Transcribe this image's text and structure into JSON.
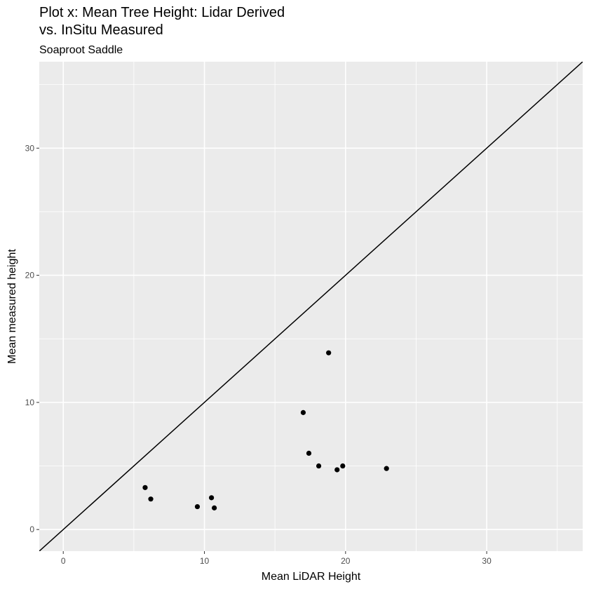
{
  "chart_data": {
    "type": "scatter",
    "title_lines": [
      "Plot x: Mean Tree Height: Lidar Derived",
      "vs. InSitu Measured"
    ],
    "subtitle": "Soaproot Saddle",
    "xlabel": "Mean LiDAR Height",
    "ylabel": "Mean measured height",
    "xlim": [
      -1.7,
      36.8
    ],
    "ylim": [
      -1.7,
      36.8
    ],
    "x_ticks": [
      0,
      10,
      20,
      30
    ],
    "y_ticks": [
      0,
      10,
      20,
      30
    ],
    "x_tick_labels": [
      "0",
      "10",
      "20",
      "30"
    ],
    "y_tick_labels": [
      "0",
      "10",
      "20",
      "30"
    ],
    "grid": true,
    "reference_line": {
      "slope": 1,
      "intercept": 0
    },
    "points": [
      {
        "x": 5.8,
        "y": 3.3
      },
      {
        "x": 6.2,
        "y": 2.4
      },
      {
        "x": 9.5,
        "y": 1.8
      },
      {
        "x": 10.5,
        "y": 2.5
      },
      {
        "x": 10.7,
        "y": 1.7
      },
      {
        "x": 17.0,
        "y": 9.2
      },
      {
        "x": 17.4,
        "y": 6.0
      },
      {
        "x": 18.1,
        "y": 5.0
      },
      {
        "x": 18.8,
        "y": 13.9
      },
      {
        "x": 19.4,
        "y": 4.7
      },
      {
        "x": 19.8,
        "y": 5.0
      },
      {
        "x": 22.9,
        "y": 4.8
      }
    ],
    "colors": {
      "panel": "#ebebeb",
      "grid": "#ffffff",
      "point": "#000000",
      "line": "#000000"
    }
  }
}
